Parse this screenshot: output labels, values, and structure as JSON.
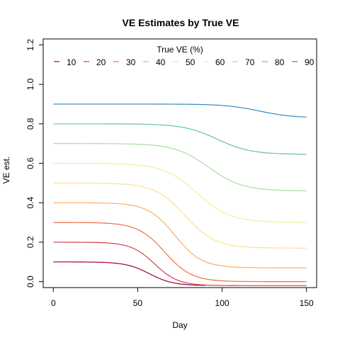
{
  "chart_data": {
    "type": "line",
    "title": "VE Estimates by True VE",
    "xlabel": "Day",
    "ylabel": "VE est.",
    "xlim": [
      -6,
      156
    ],
    "ylim": [
      -0.03,
      1.23
    ],
    "x_ticks": [
      0,
      50,
      100,
      150
    ],
    "y_ticks": [
      0.0,
      0.2,
      0.4,
      0.6,
      0.8,
      1.0,
      1.2
    ],
    "x_tick_labels": [
      "0",
      "50",
      "100",
      "150"
    ],
    "y_tick_labels": [
      "0.0",
      "0.2",
      "0.4",
      "0.6",
      "0.8",
      "1.0",
      "1.2"
    ],
    "legend": {
      "title": "True VE (%)",
      "position": "top"
    },
    "series": [
      {
        "name": "10",
        "color": "#9E0142",
        "start": 0.1,
        "end": -0.02,
        "midpoint": 57,
        "scale": 7,
        "x_end": 90
      },
      {
        "name": "20",
        "color": "#D53E4F",
        "start": 0.2,
        "end": -0.02,
        "midpoint": 60,
        "scale": 7,
        "x_end": 150
      },
      {
        "name": "30",
        "color": "#F46D43",
        "start": 0.3,
        "end": 0.0,
        "midpoint": 66,
        "scale": 8,
        "x_end": 150
      },
      {
        "name": "40",
        "color": "#FDAE61",
        "start": 0.4,
        "end": 0.07,
        "midpoint": 72,
        "scale": 8,
        "x_end": 150
      },
      {
        "name": "50",
        "color": "#FEE08B",
        "start": 0.5,
        "end": 0.17,
        "midpoint": 78,
        "scale": 9,
        "x_end": 150
      },
      {
        "name": "60",
        "color": "#E6F598",
        "start": 0.6,
        "end": 0.3,
        "midpoint": 85,
        "scale": 10,
        "x_end": 150
      },
      {
        "name": "70",
        "color": "#ABDDA4",
        "start": 0.7,
        "end": 0.46,
        "midpoint": 92,
        "scale": 10,
        "x_end": 150
      },
      {
        "name": "80",
        "color": "#66C2A5",
        "start": 0.8,
        "end": 0.645,
        "midpoint": 97,
        "scale": 10,
        "x_end": 150
      },
      {
        "name": "90",
        "color": "#3288BD",
        "start": 0.9,
        "end": 0.83,
        "midpoint": 122,
        "scale": 10,
        "x_end": 150
      }
    ]
  }
}
